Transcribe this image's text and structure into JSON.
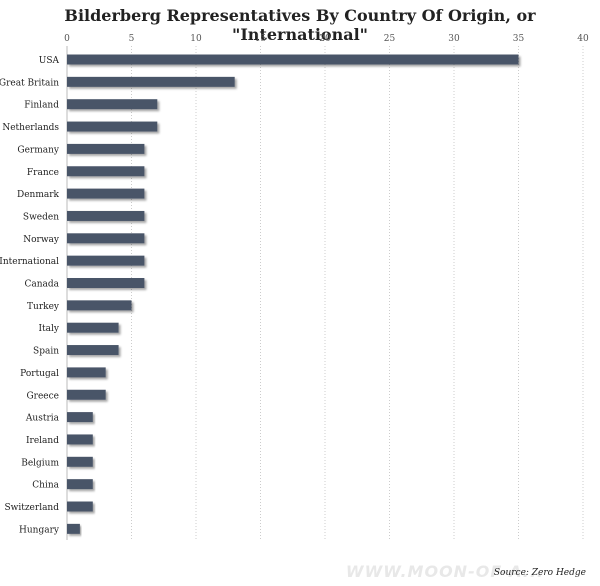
{
  "chart_data": {
    "type": "bar",
    "orientation": "horizontal",
    "title": "Bilderberg Representatives By Country Of Origin, or \"International\"",
    "xlabel": "",
    "ylabel": "",
    "xlim": [
      0,
      40
    ],
    "x_ticks": [
      0,
      5,
      10,
      15,
      20,
      25,
      30,
      35,
      40
    ],
    "x_axis_position": "top",
    "grid": "vertical dotted",
    "legend": "none",
    "categories": [
      "USA",
      "Great Britain",
      "Finland",
      "Netherlands",
      "Germany",
      "France",
      "Denmark",
      "Sweden",
      "Norway",
      "International",
      "Canada",
      "Turkey",
      "Italy",
      "Spain",
      "Portugal",
      "Greece",
      "Austria",
      "Ireland",
      "Belgium",
      "China",
      "Switzerland",
      "Hungary"
    ],
    "values": [
      35,
      13,
      7,
      7,
      6,
      6,
      6,
      6,
      6,
      6,
      6,
      5,
      4,
      4,
      3,
      3,
      2,
      2,
      2,
      2,
      2,
      1
    ],
    "bar_color": "#4a5568"
  },
  "source": "Source: Zero Hedge",
  "watermark": "WWW.MOON-OF-A..."
}
